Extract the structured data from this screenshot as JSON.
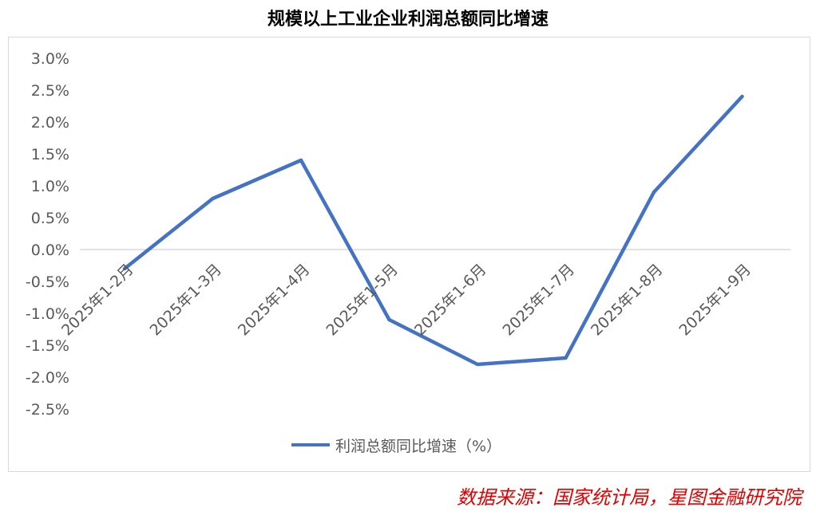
{
  "chart_data": {
    "type": "line",
    "title": "规模以上工业企业利润总额同比增速",
    "categories": [
      "2025年1-2月",
      "2025年1-3月",
      "2025年1-4月",
      "2025年1-5月",
      "2025年1-6月",
      "2025年1-7月",
      "2025年1-8月",
      "2025年1-9月"
    ],
    "series": [
      {
        "name": "利润总额同比增速（%）",
        "values": [
          -0.3,
          0.8,
          1.4,
          -1.1,
          -1.8,
          -1.7,
          0.9,
          2.4
        ],
        "color": "#4472c4"
      }
    ],
    "y_ticks": [
      "3.0%",
      "2.5%",
      "2.0%",
      "1.5%",
      "1.0%",
      "0.5%",
      "0.0%",
      "-0.5%",
      "-1.0%",
      "-1.5%",
      "-2.0%",
      "-2.5%"
    ],
    "ylim": [
      -2.5,
      3.0
    ],
    "grid": false,
    "legend_position": "bottom"
  },
  "source_note": "数据来源：国家统计局，星图金融研究院"
}
